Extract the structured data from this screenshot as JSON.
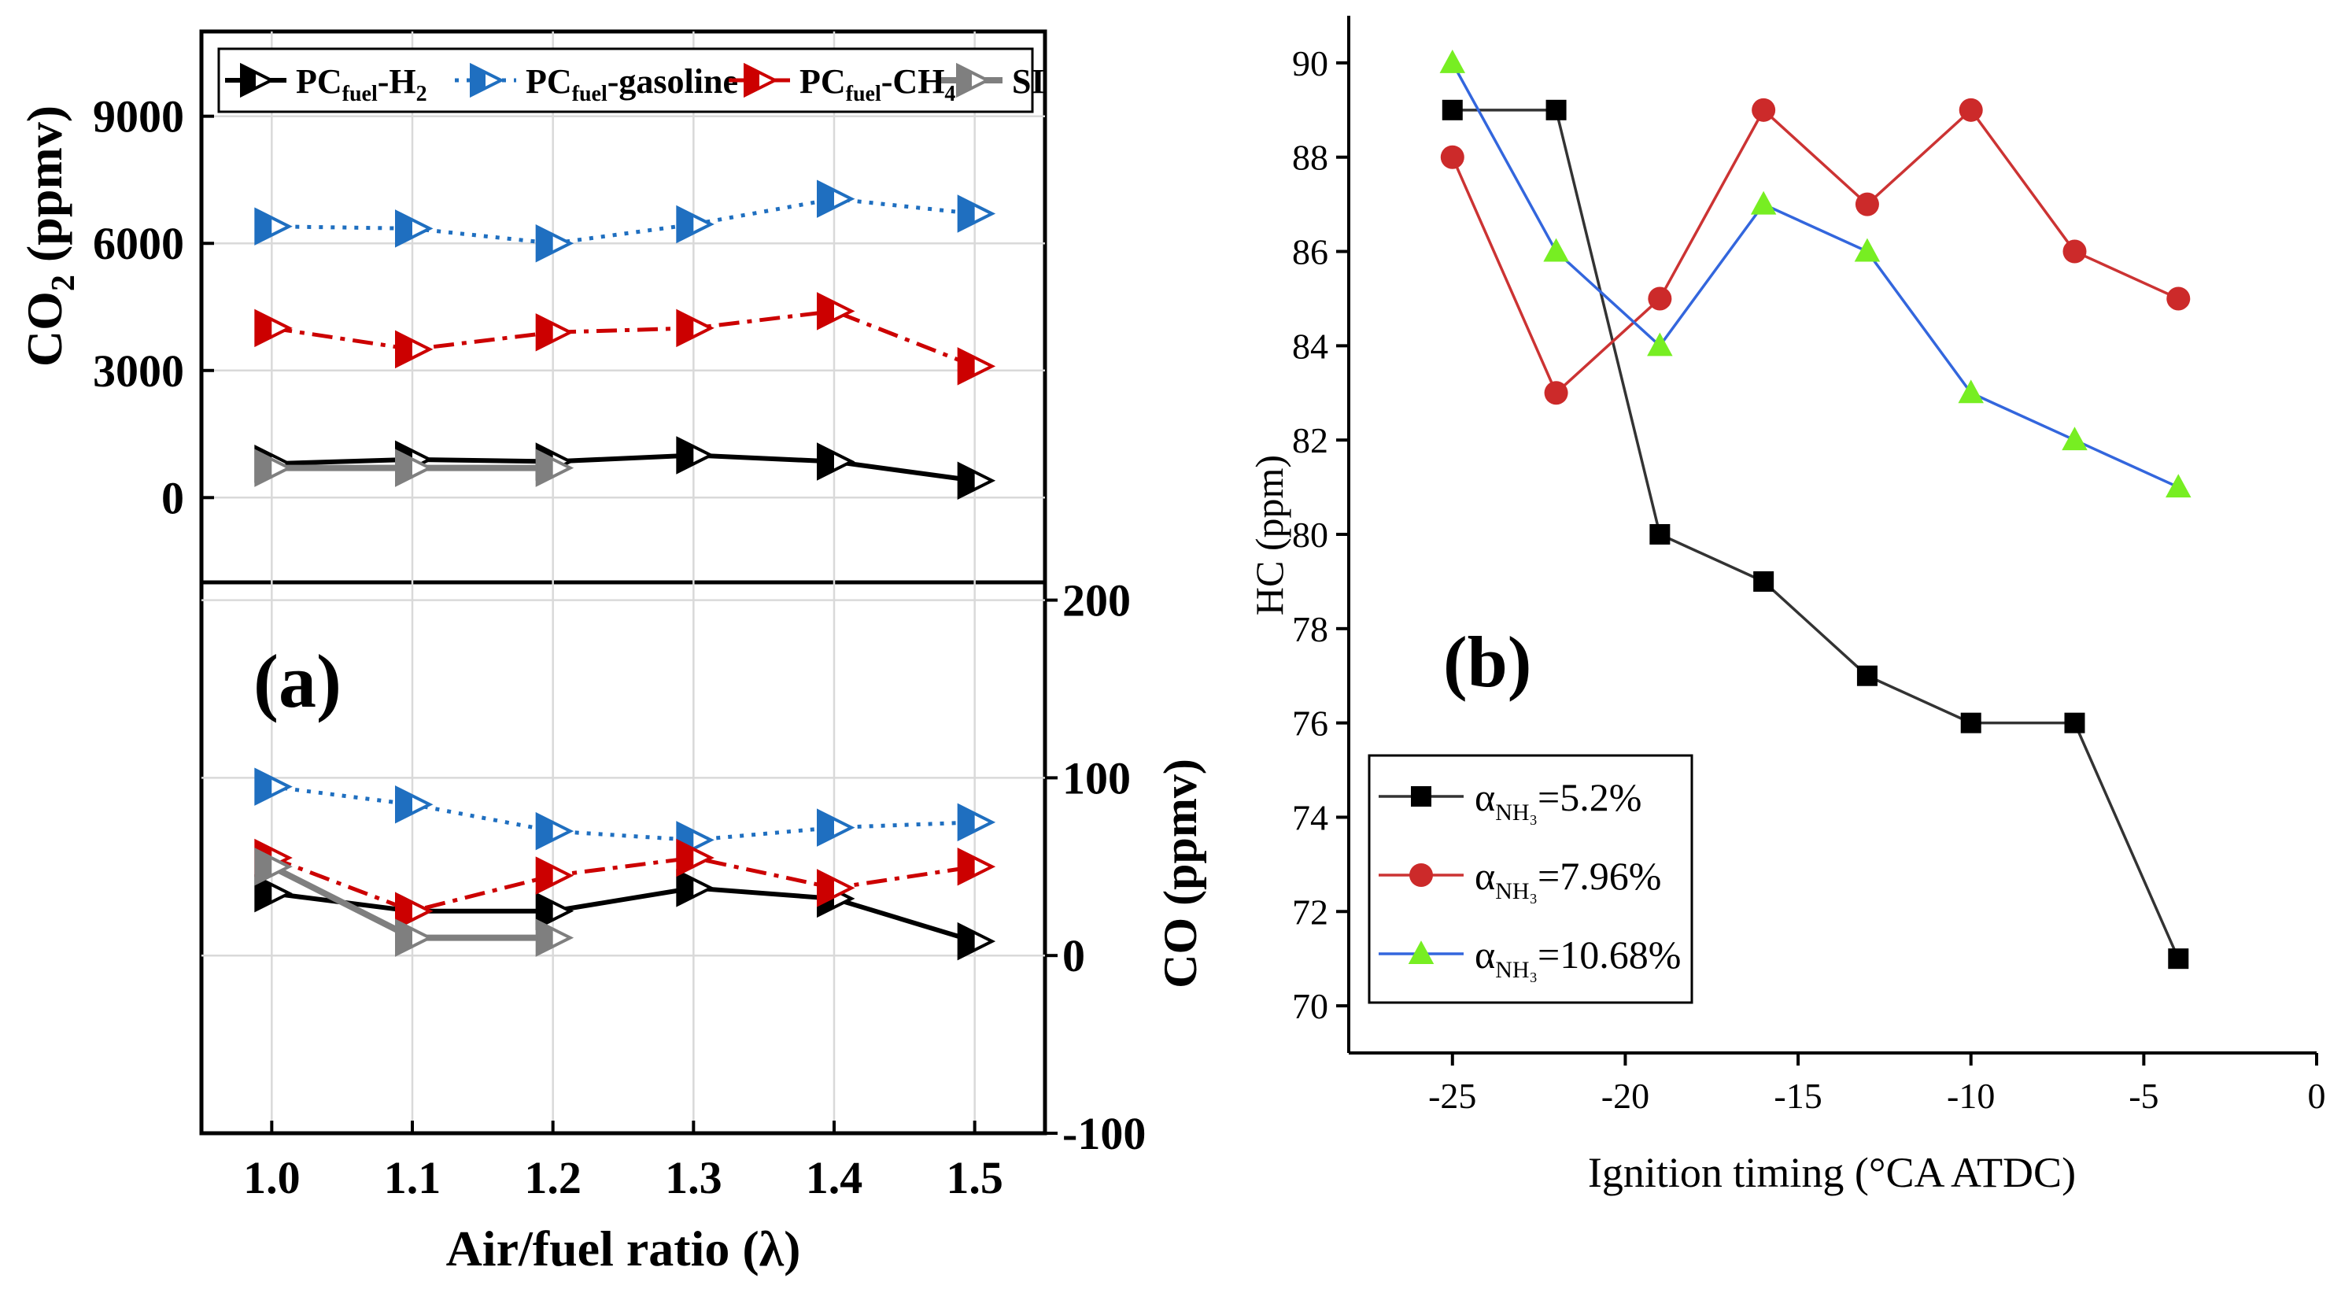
{
  "chart_data": [
    {
      "panel": "a",
      "type": "line",
      "panel_label": "(a)",
      "xlabel": "Air/fuel ratio (λ)",
      "x_ticks": [
        "1.0",
        "1.1",
        "1.2",
        "1.3",
        "1.4",
        "1.5"
      ],
      "xlim": [
        0.95,
        1.55
      ],
      "top": {
        "ylabel_main": "CO",
        "ylabel_sub": "2",
        "ylabel_unit": " (ppmv)",
        "ylim": [
          -2000,
          11000
        ],
        "y_ticks": [
          "0",
          "3000",
          "6000",
          "9000"
        ],
        "y_tick_values": [
          0,
          3000,
          6000,
          9000
        ],
        "series": [
          {
            "key": "h2",
            "x": [
              1.0,
              1.1,
              1.2,
              1.3,
              1.4,
              1.5
            ],
            "y": [
              800,
              900,
              850,
              1000,
              850,
              400
            ]
          },
          {
            "key": "gasoline",
            "x": [
              1.0,
              1.1,
              1.2,
              1.3,
              1.4,
              1.5
            ],
            "y": [
              6400,
              6350,
              6000,
              6450,
              7050,
              6700
            ]
          },
          {
            "key": "ch4",
            "x": [
              1.0,
              1.1,
              1.2,
              1.3,
              1.4,
              1.5
            ],
            "y": [
              4000,
              3500,
              3900,
              4000,
              4400,
              3100
            ]
          },
          {
            "key": "si",
            "x": [
              1.0,
              1.1,
              1.2
            ],
            "y": [
              700,
              700,
              700
            ]
          }
        ]
      },
      "bottom": {
        "ylabel": "CO (ppmv)",
        "ylim": [
          -100,
          210
        ],
        "y_ticks": [
          "-100",
          "0",
          "100",
          "200"
        ],
        "y_tick_values": [
          -100,
          0,
          100,
          200
        ],
        "series": [
          {
            "key": "h2",
            "x": [
              1.0,
              1.1,
              1.2,
              1.3,
              1.4,
              1.5
            ],
            "y": [
              35,
              25,
              25,
              38,
              32,
              8
            ]
          },
          {
            "key": "gasoline",
            "x": [
              1.0,
              1.1,
              1.2,
              1.3,
              1.4,
              1.5
            ],
            "y": [
              95,
              85,
              70,
              65,
              72,
              75
            ]
          },
          {
            "key": "ch4",
            "x": [
              1.0,
              1.1,
              1.2,
              1.3,
              1.4,
              1.5
            ],
            "y": [
              55,
              25,
              45,
              55,
              38,
              50
            ]
          },
          {
            "key": "si",
            "x": [
              1.0,
              1.1,
              1.2
            ],
            "y": [
              50,
              10,
              10
            ]
          }
        ]
      },
      "legend": [
        {
          "key": "h2",
          "main": "PC",
          "sub": "fuel",
          "rest": "-H",
          "rest_sub": "2",
          "color": "#000000"
        },
        {
          "key": "gasoline",
          "main": "PC",
          "sub": "fuel",
          "rest": "-gasoline",
          "rest_sub": "",
          "color": "#1f6fc0"
        },
        {
          "key": "ch4",
          "main": "PC",
          "sub": "fuel",
          "rest": "-CH",
          "rest_sub": "4",
          "color": "#cc0000"
        },
        {
          "key": "si",
          "main": "SI",
          "sub": "",
          "rest": "",
          "rest_sub": "",
          "color": "#7f7f7f"
        }
      ]
    },
    {
      "panel": "b",
      "type": "line",
      "panel_label": "(b)",
      "xlabel": "Ignition timing (°CA ATDC)",
      "ylabel": "HC (ppm)",
      "xlim": [
        -28,
        0
      ],
      "ylim": [
        69,
        91
      ],
      "x_ticks": [
        "-25",
        "-20",
        "-15",
        "-10",
        "-5",
        "0"
      ],
      "x_tick_values": [
        -25,
        -20,
        -15,
        -10,
        -5,
        0
      ],
      "y_ticks": [
        "70",
        "72",
        "74",
        "76",
        "78",
        "80",
        "82",
        "84",
        "86",
        "88",
        "90"
      ],
      "y_tick_values": [
        70,
        72,
        74,
        76,
        78,
        80,
        82,
        84,
        86,
        88,
        90
      ],
      "series": [
        {
          "key": "s1",
          "name_main": "α",
          "name_sub": "NH₃",
          "name_value": "=5.2%",
          "color": "#333333",
          "marker": "square",
          "marker_color": "#000000",
          "x": [
            -25,
            -22,
            -19,
            -16,
            -13,
            -10,
            -7,
            -4
          ],
          "y": [
            89,
            89,
            80,
            79,
            77,
            76,
            76,
            71
          ]
        },
        {
          "key": "s2",
          "name_main": "α",
          "name_sub": "NH₃",
          "name_value": "=7.96%",
          "color": "#cc3333",
          "marker": "circle",
          "marker_color": "#cc2a2a",
          "x": [
            -25,
            -22,
            -19,
            -16,
            -13,
            -10,
            -7,
            -4
          ],
          "y": [
            88,
            83,
            85,
            89,
            87,
            89,
            86,
            85
          ]
        },
        {
          "key": "s3",
          "name_main": "α",
          "name_sub": "NH₃",
          "name_value": "=10.68%",
          "color": "#3366dd",
          "marker": "triangle",
          "marker_color": "#77ee22",
          "x": [
            -25,
            -22,
            -19,
            -16,
            -13,
            -10,
            -7,
            -4
          ],
          "y": [
            90,
            86,
            84,
            87,
            86,
            83,
            82,
            81
          ]
        }
      ]
    }
  ]
}
